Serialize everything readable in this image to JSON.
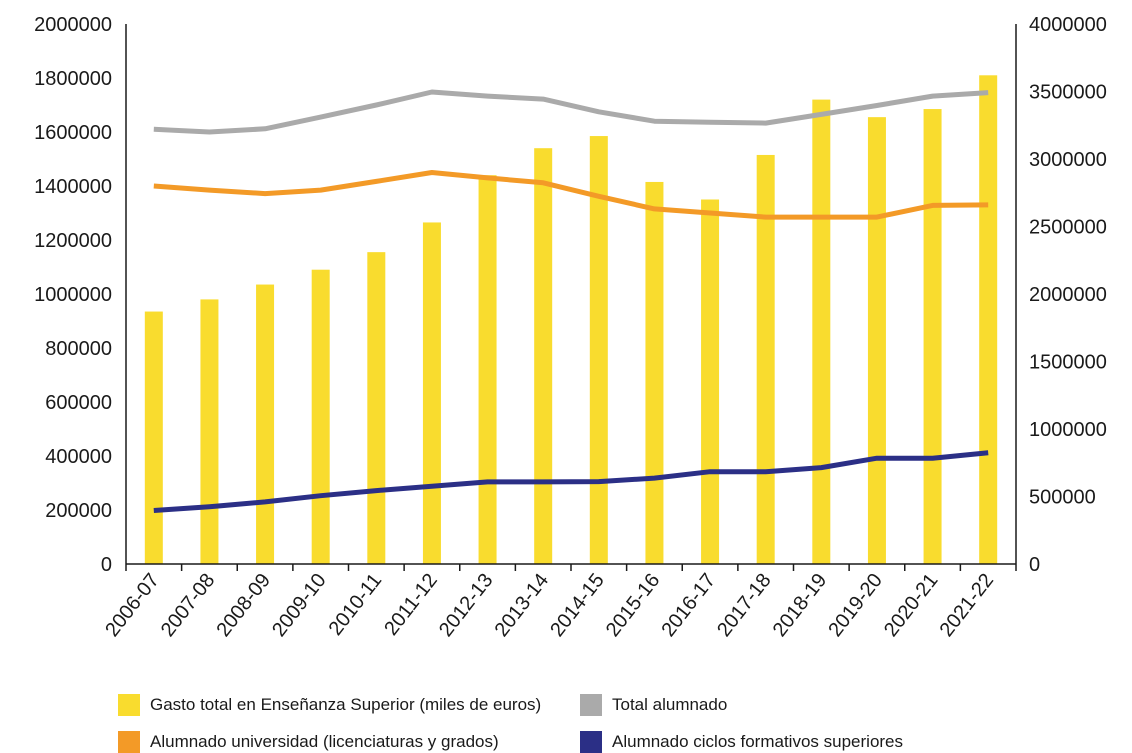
{
  "chart_data": {
    "type": "bar+line",
    "categories": [
      "2006-07",
      "2007-08",
      "2008-09",
      "2009-10",
      "2010-11",
      "2011-12",
      "2012-13",
      "2013-14",
      "2014-15",
      "2015-16",
      "2016-17",
      "2017-18",
      "2018-19",
      "2019-20",
      "2020-21",
      "2021-22"
    ],
    "left_axis": {
      "ylim": [
        0,
        2000000
      ],
      "ticks": [
        "0",
        "200000",
        "400000",
        "600000",
        "800000",
        "1000000",
        "1200000",
        "1400000",
        "1600000",
        "1800000",
        "2000000"
      ]
    },
    "right_axis": {
      "ylim": [
        0,
        4000000
      ],
      "ticks": [
        "0",
        "500000",
        "1000000",
        "1500000",
        "2000000",
        "2500000",
        "3000000",
        "3500000",
        "4000000"
      ]
    },
    "series": [
      {
        "name": "Gasto total en Enseñanza Superior (miles de euros)",
        "kind": "bar",
        "axis": "left",
        "color": "#F9DC2E",
        "values": [
          935000,
          980000,
          1035000,
          1090000,
          1155000,
          1265000,
          1440000,
          1540000,
          1585000,
          1415000,
          1350000,
          1515000,
          1720000,
          1655000,
          1685000,
          1810000
        ]
      },
      {
        "name": "Total alumnado",
        "kind": "line",
        "axis": "left",
        "color": "#AAAAAA",
        "values": [
          1610000,
          1600000,
          1612000,
          1655000,
          1700000,
          1748000,
          1733000,
          1722000,
          1675000,
          1640000,
          1636000,
          1633000,
          1665000,
          1698000,
          1733000,
          1746000
        ]
      },
      {
        "name": "Alumnado universidad (licenciaturas y grados)",
        "kind": "line",
        "axis": "left",
        "color": "#F39A27",
        "values": [
          1400000,
          1385000,
          1372000,
          1385000,
          1417000,
          1450000,
          1430000,
          1412000,
          1362000,
          1315000,
          1300000,
          1285000,
          1285000,
          1285000,
          1328000,
          1330000
        ]
      },
      {
        "name": "Alumnado ciclos formativos superiores",
        "kind": "line",
        "axis": "left",
        "color": "#2B2F86",
        "values": [
          198000,
          212000,
          230000,
          253000,
          272000,
          288000,
          304000,
          304000,
          305000,
          318000,
          342000,
          342000,
          357000,
          392000,
          392000,
          412000
        ]
      }
    ],
    "legend_position": "bottom",
    "grid": false
  }
}
